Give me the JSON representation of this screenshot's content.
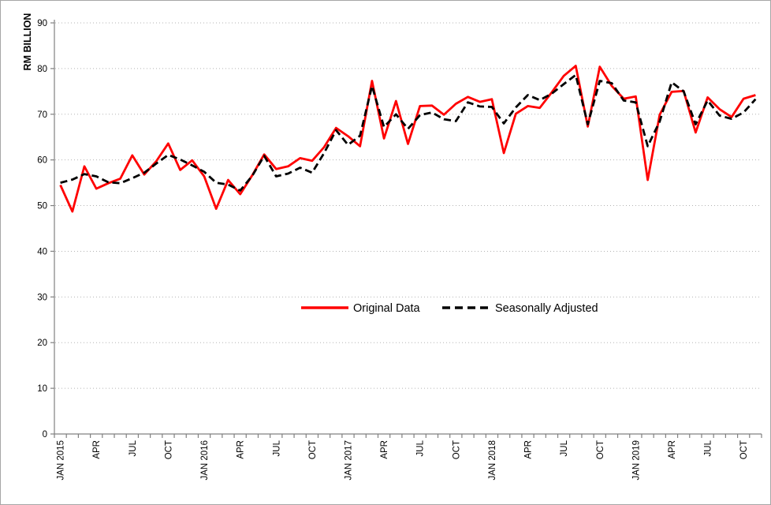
{
  "window": {
    "background": "#ffffff",
    "border_color": "#a6a6a6"
  },
  "chart_data": {
    "type": "line",
    "title": "",
    "xlabel": "",
    "ylabel": "RM BILLION",
    "ylim": [
      0,
      90
    ],
    "ytick_step": 10,
    "yticks": [
      0,
      10,
      20,
      30,
      40,
      50,
      60,
      70,
      80,
      90
    ],
    "grid": "horizontal dotted",
    "gridline_color": "#b3b3b3",
    "axis_color": "#808080",
    "legend_position": "center-middle",
    "n_points": 59,
    "x_start": "JAN 2015",
    "x_end": "NOV 2019",
    "xticks": [
      {
        "index": 0,
        "label": "JAN 2015"
      },
      {
        "index": 3,
        "label": "APR"
      },
      {
        "index": 6,
        "label": "JUL"
      },
      {
        "index": 9,
        "label": "OCT"
      },
      {
        "index": 12,
        "label": "JAN 2016"
      },
      {
        "index": 15,
        "label": "APR"
      },
      {
        "index": 18,
        "label": "JUL"
      },
      {
        "index": 21,
        "label": "OCT"
      },
      {
        "index": 24,
        "label": "JAN 2017"
      },
      {
        "index": 27,
        "label": "APR"
      },
      {
        "index": 30,
        "label": "JUL"
      },
      {
        "index": 33,
        "label": "OCT"
      },
      {
        "index": 36,
        "label": "JAN 2018"
      },
      {
        "index": 39,
        "label": "APR"
      },
      {
        "index": 42,
        "label": "JUL"
      },
      {
        "index": 45,
        "label": "OCT"
      },
      {
        "index": 48,
        "label": "JAN 2019"
      },
      {
        "index": 51,
        "label": "APR"
      },
      {
        "index": 54,
        "label": "JUL"
      },
      {
        "index": 57,
        "label": "OCT"
      }
    ],
    "series": [
      {
        "name": "Original Data",
        "color": "#ff0000",
        "style": "solid",
        "values": [
          54.5,
          48.7,
          58.6,
          53.7,
          54.9,
          55.9,
          61.0,
          56.8,
          59.7,
          63.6,
          57.8,
          59.9,
          56.4,
          49.3,
          55.6,
          52.5,
          56.6,
          61.2,
          58.0,
          58.6,
          60.4,
          59.8,
          62.8,
          67.0,
          65.2,
          63.0,
          77.3,
          64.7,
          72.9,
          63.5,
          71.8,
          71.9,
          69.9,
          72.3,
          73.8,
          72.7,
          73.3,
          61.5,
          70.1,
          71.8,
          71.4,
          74.8,
          78.4,
          80.6,
          67.3,
          80.4,
          76.2,
          73.4,
          73.9,
          55.6,
          69.9,
          74.9,
          75.1,
          66.0,
          73.7,
          71.1,
          69.4,
          73.4,
          74.2
        ]
      },
      {
        "name": "Seasonally Adjusted",
        "color": "#000000",
        "style": "dashed",
        "values": [
          55.0,
          55.7,
          56.9,
          56.4,
          55.1,
          54.9,
          56.0,
          57.2,
          59.2,
          61.1,
          60.1,
          58.8,
          57.4,
          55.0,
          54.6,
          53.3,
          56.5,
          60.9,
          56.4,
          57.0,
          58.3,
          57.2,
          61.5,
          66.5,
          63.3,
          65.3,
          76.2,
          67.2,
          70.0,
          66.8,
          69.8,
          70.4,
          68.9,
          68.5,
          72.6,
          71.7,
          71.6,
          68.0,
          71.5,
          74.2,
          73.1,
          74.5,
          76.6,
          78.6,
          67.8,
          77.3,
          76.8,
          73.0,
          72.6,
          63.0,
          68.4,
          77.0,
          75.0,
          67.8,
          73.0,
          69.7,
          69.0,
          70.4,
          73.3
        ]
      }
    ]
  }
}
